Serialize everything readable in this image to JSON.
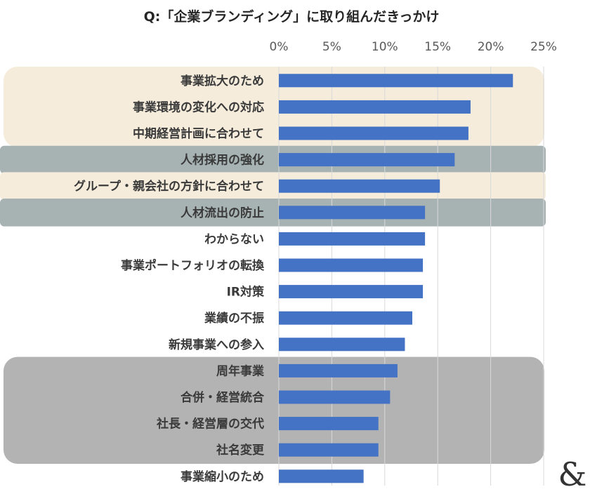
{
  "chart_data": {
    "type": "bar",
    "orientation": "horizontal",
    "title": "Q:「企業ブランディング」に取り組んだきっかけ",
    "xlabel": "",
    "ylabel": "",
    "xlim": [
      0,
      25
    ],
    "x_ticks": [
      "0%",
      "5%",
      "10%",
      "15%",
      "20%",
      "25%"
    ],
    "grid": "vertical",
    "bar_color": "#4472c4",
    "categories": [
      "事業拡大のため",
      "事業環境の変化への対応",
      "中期経営計画に合わせて",
      "人材採用の強化",
      "グループ・親会社の方針に合わせて",
      "人材流出の防止",
      "わからない",
      "事業ポートフォリオの転換",
      "IR対策",
      "業績の不振",
      "新規事業への参入",
      "周年事業",
      "合併・経営統合",
      "社長・経営層の交代",
      "社名変更",
      "事業縮小のため"
    ],
    "values": [
      22.1,
      18.1,
      17.9,
      16.6,
      15.2,
      13.8,
      13.8,
      13.6,
      13.6,
      12.6,
      11.9,
      11.2,
      10.5,
      9.4,
      9.4,
      8.0
    ],
    "highlight_groups": [
      {
        "rows": [
          0,
          2
        ],
        "color": "#f5ecdc"
      },
      {
        "rows": [
          3,
          3
        ],
        "color": "#a7b2b3"
      },
      {
        "rows": [
          4,
          4
        ],
        "color": "#f5ecdc"
      },
      {
        "rows": [
          5,
          5
        ],
        "color": "#a7b2b3"
      },
      {
        "rows": [
          11,
          14
        ],
        "color": "#b3b3b3"
      }
    ]
  },
  "logo": {
    "symbol": "&"
  }
}
